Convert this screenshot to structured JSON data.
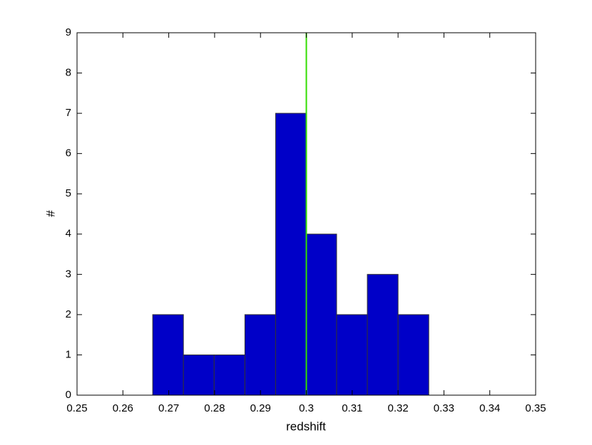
{
  "chart_data": {
    "type": "histogram",
    "bins": [
      0.2665,
      0.2732,
      0.2799,
      0.2866,
      0.2933,
      0.3,
      0.3066,
      0.3133,
      0.32,
      0.3267
    ],
    "values": [
      2,
      1,
      1,
      2,
      7,
      4,
      2,
      3,
      2
    ],
    "color": "#0000c8",
    "edge_color": "#333333",
    "xlabel": "redshift",
    "ylabel": "#",
    "xlim": [
      0.25,
      0.35
    ],
    "xticks": [
      0.25,
      0.26,
      0.27,
      0.28,
      0.29,
      0.3,
      0.31,
      0.32,
      0.33,
      0.34,
      0.35
    ],
    "ylim": [
      0,
      9
    ],
    "yticks": [
      0,
      1,
      2,
      3,
      4,
      5,
      6,
      7,
      8,
      9
    ],
    "vline": {
      "x": 0.3,
      "color": "#33dd00"
    },
    "grid": false
  }
}
